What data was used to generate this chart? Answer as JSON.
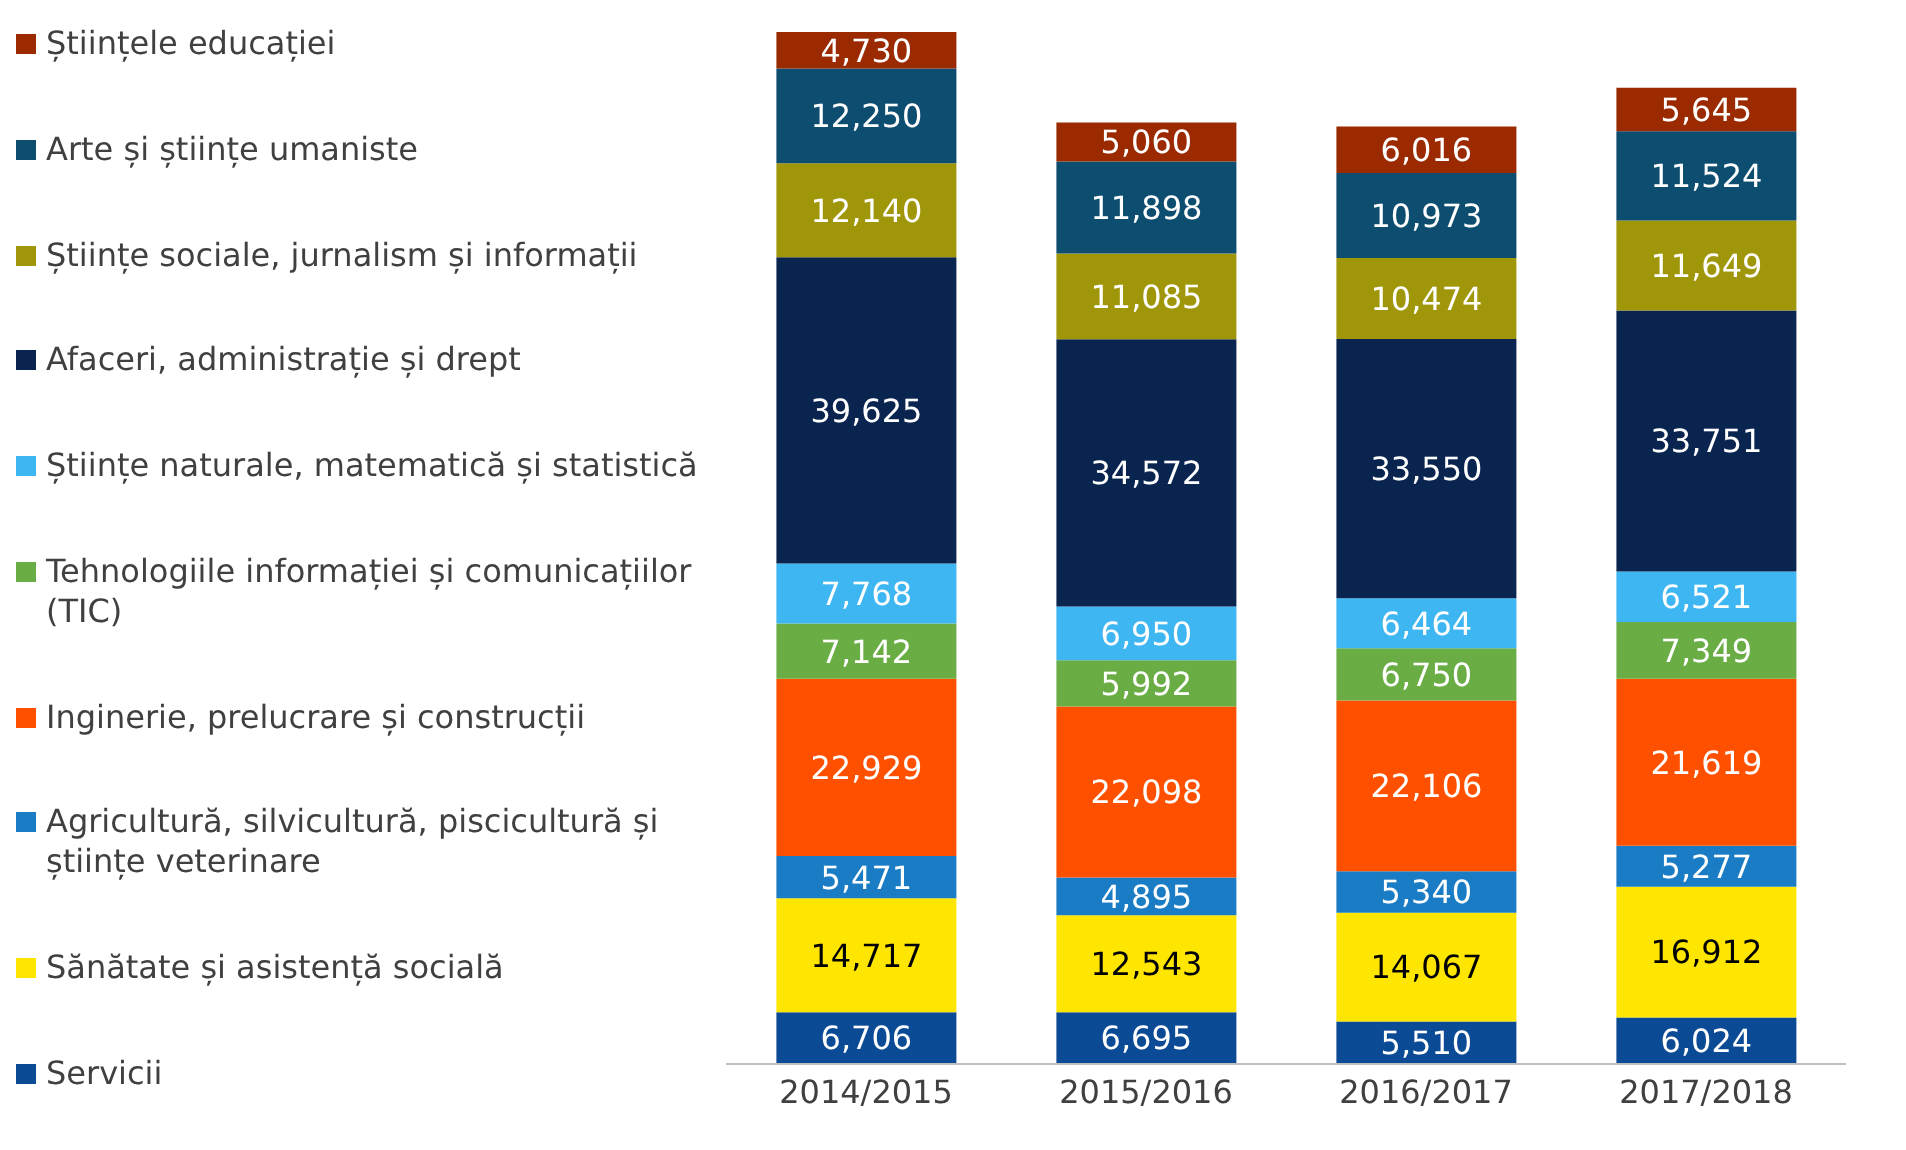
{
  "chart_data": {
    "type": "bar",
    "stacked": true,
    "legend": "left",
    "categories": [
      "2014/2015",
      "2015/2016",
      "2016/2017",
      "2017/2018"
    ],
    "series": [
      {
        "name": "Servicii",
        "color": "#0b4a94",
        "values": [
          6706,
          6695,
          5510,
          6024
        ],
        "value_labels": [
          "6,706",
          "6,695",
          "5,510",
          "6,024"
        ]
      },
      {
        "name": "Sănătate și asistență socială",
        "color": "#ffe600",
        "values": [
          14717,
          12543,
          14067,
          16912
        ],
        "value_labels": [
          "14,717",
          "12,543",
          "14,067",
          "16,912"
        ]
      },
      {
        "name": "Agricultură, silvicultură, piscicultură și științe veterinare",
        "color": "#1a7cc4",
        "values": [
          5471,
          4895,
          5340,
          5277
        ],
        "value_labels": [
          "5,471",
          "4,895",
          "5,340",
          "5,277"
        ]
      },
      {
        "name": "Inginerie, prelucrare și construcții",
        "color": "#ff5000",
        "values": [
          22929,
          22098,
          22106,
          21619
        ],
        "value_labels": [
          "22,929",
          "22,098",
          "22,106",
          "21,619"
        ]
      },
      {
        "name": "Tehnologiile informației și comunicațiilor (TIC)",
        "color": "#6aad45",
        "values": [
          7142,
          5992,
          6750,
          7349
        ],
        "value_labels": [
          "7,142",
          "5,992",
          "6,750",
          "7,349"
        ]
      },
      {
        "name": "Științe naturale, matematică și statistică",
        "color": "#3db6f2",
        "values": [
          7768,
          6950,
          6464,
          6521
        ],
        "value_labels": [
          "7,768",
          "6,950",
          "6,464",
          "6,521"
        ]
      },
      {
        "name": "Afaceri, administrație și drept",
        "color": "#0a2450",
        "values": [
          39625,
          34572,
          33550,
          33751
        ],
        "value_labels": [
          "39,625",
          "34,572",
          "33,550",
          "33,751"
        ]
      },
      {
        "name": "Științe sociale, jurnalism și informații",
        "color": "#a0960a",
        "values": [
          12140,
          11085,
          10474,
          11649
        ],
        "value_labels": [
          "12,140",
          "11,085",
          "10,474",
          "11,649"
        ]
      },
      {
        "name": "Arte și științe umaniste",
        "color": "#0d4d70",
        "values": [
          12250,
          11898,
          10973,
          11524
        ],
        "value_labels": [
          "12,250",
          "11,898",
          "10,973",
          "11,524"
        ]
      },
      {
        "name": "Științele educației",
        "color": "#9c2a00",
        "values": [
          4730,
          5060,
          6016,
          5645
        ],
        "value_labels": [
          "4,730",
          "5,060",
          "6,016",
          "5,645"
        ]
      }
    ]
  }
}
